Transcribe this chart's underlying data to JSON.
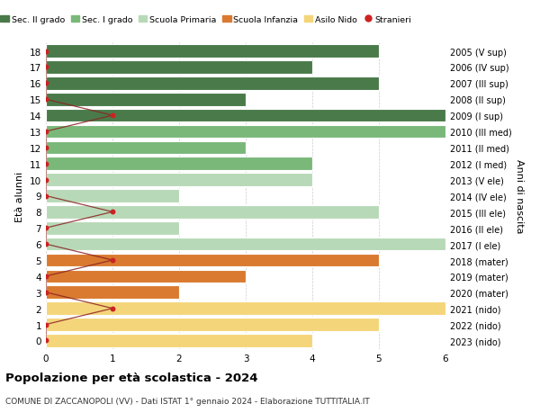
{
  "ages": [
    18,
    17,
    16,
    15,
    14,
    13,
    12,
    11,
    10,
    9,
    8,
    7,
    6,
    5,
    4,
    3,
    2,
    1,
    0
  ],
  "right_labels": [
    "2005 (V sup)",
    "2006 (IV sup)",
    "2007 (III sup)",
    "2008 (II sup)",
    "2009 (I sup)",
    "2010 (III med)",
    "2011 (II med)",
    "2012 (I med)",
    "2013 (V ele)",
    "2014 (IV ele)",
    "2015 (III ele)",
    "2016 (II ele)",
    "2017 (I ele)",
    "2018 (mater)",
    "2019 (mater)",
    "2020 (mater)",
    "2021 (nido)",
    "2022 (nido)",
    "2023 (nido)"
  ],
  "bar_values": [
    5,
    4,
    5,
    3,
    6,
    6,
    3,
    4,
    4,
    2,
    5,
    2,
    6,
    5,
    3,
    2,
    6,
    5,
    4
  ],
  "bar_colors": [
    "#4a7a4a",
    "#4a7a4a",
    "#4a7a4a",
    "#4a7a4a",
    "#4a7a4a",
    "#7ab87a",
    "#7ab87a",
    "#7ab87a",
    "#b8d9b8",
    "#b8d9b8",
    "#b8d9b8",
    "#b8d9b8",
    "#b8d9b8",
    "#d97a30",
    "#d97a30",
    "#d97a30",
    "#f5d57a",
    "#f5d57a",
    "#f5d57a"
  ],
  "stranieri_dot_positions": {
    "14": 1,
    "8": 1,
    "5": 1,
    "2": 1
  },
  "legend_labels": [
    "Sec. II grado",
    "Sec. I grado",
    "Scuola Primaria",
    "Scuola Infanzia",
    "Asilo Nido",
    "Stranieri"
  ],
  "legend_colors": [
    "#4a7a4a",
    "#7ab87a",
    "#b8d9b8",
    "#d97a30",
    "#f5d57a",
    "#cc2222"
  ],
  "title": "Popolazione per età scolastica - 2024",
  "subtitle": "COMUNE DI ZACCANOPOLI (VV) - Dati ISTAT 1° gennaio 2024 - Elaborazione TUTTITALIA.IT",
  "ylabel_left": "Età alunni",
  "ylabel_right": "Anni di nascita",
  "xlim": [
    0,
    6
  ],
  "bg_color": "#ffffff",
  "bar_edge_color": "#ffffff",
  "grid_color": "#cccccc",
  "line_color": "#8b2222",
  "dot_color": "#cc2222"
}
